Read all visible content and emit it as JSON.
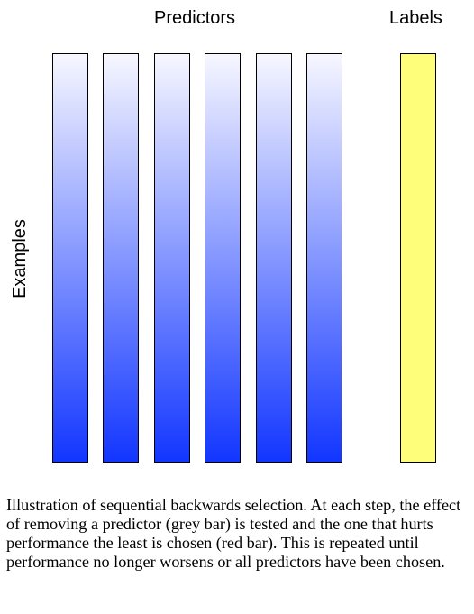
{
  "headings": {
    "predictors": "Predictors",
    "labels": "Labels"
  },
  "axis": {
    "rows_label": "Examples"
  },
  "predictor_bars": {
    "count": 6,
    "gradient_top": "#f7f7ff",
    "gradient_bottom": "#1236ff"
  },
  "label_bar": {
    "color": "#fefe7a"
  },
  "caption": {
    "text": "Illustration of sequential backwards selection.  At each step, the effect of removing a predictor (grey bar) is tested and the one that hurts performance the least is chosen (red bar).  This is repeated until performance no longer worsens or all predictors have been chosen."
  }
}
